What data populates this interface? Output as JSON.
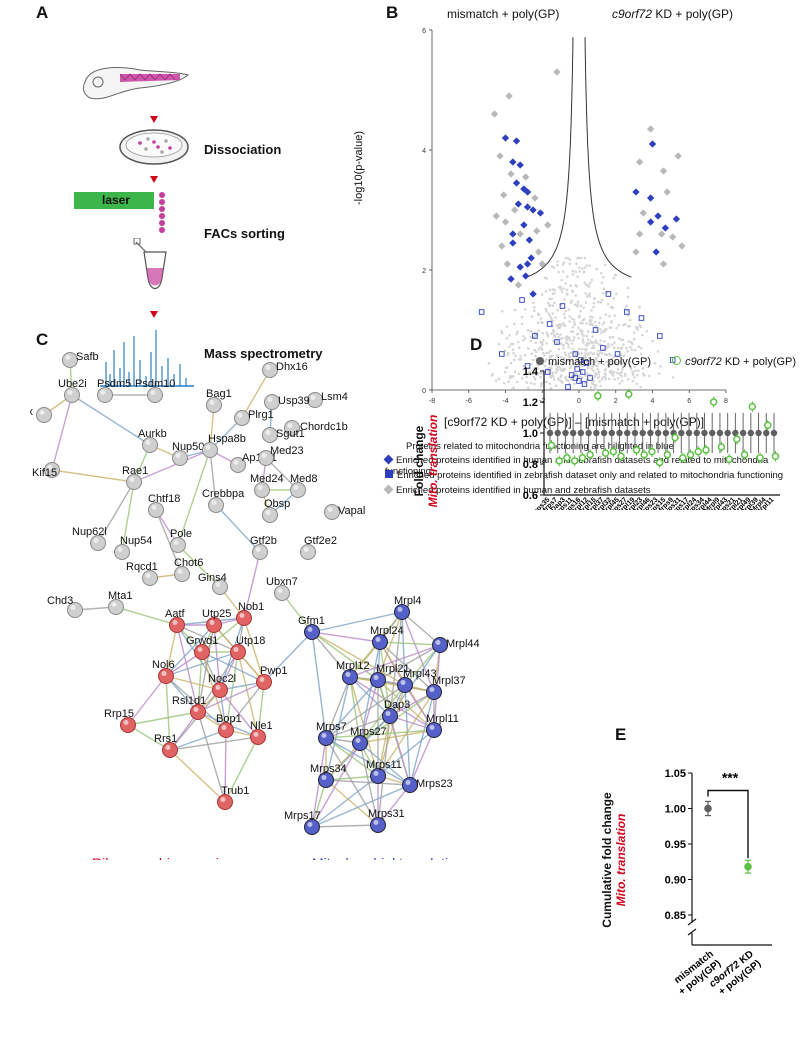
{
  "panel_labels": {
    "a": "A",
    "b": "B",
    "c": "C",
    "d": "D",
    "e": "E"
  },
  "panel_a": {
    "steps": [
      "Dissociation",
      "FACs sorting",
      "Mass spectrometry"
    ],
    "laser_label": "laser",
    "colors": {
      "arrow": "#d0021b",
      "laser": "#3cb54a",
      "fish": "#c43d9a",
      "ms": "#2a7fc4"
    }
  },
  "panel_b": {
    "titles": {
      "left": "mismatch + poly(GP)",
      "right_italic": "c9orf72",
      "right_rest": " KD + poly(GP)"
    },
    "ylabel": "-log10(p-value)",
    "xlabel": "[c9orf72 KD + poly(GP)] – [mismatch + poly(GP)]",
    "legend_title": "Proteins related to mitochondria functioning are hilighted in blue",
    "legend": [
      "Enriched proteins identified in human and zebrafish datasets and related to mitochondria functioning",
      "Enriched proteins identified in zebrafish dataset only and related to mitochondria functioning",
      "Enriched proteins identified in human and zebrafish datasets"
    ],
    "colors": {
      "blue": "#2d3fbf",
      "grey": "#b8b8b8",
      "light": "#d6d6d6"
    }
  },
  "chart_data": [
    {
      "type": "scatter",
      "title": "",
      "xlabel": "[c9orf72 KD + poly(GP)] – [mismatch + poly(GP)]",
      "ylabel": "-log10(p-value)",
      "xlim": [
        -8,
        8
      ],
      "ylim": [
        0,
        6
      ],
      "xticks": [
        -8,
        -6,
        -4,
        -2,
        0,
        2,
        4,
        6,
        8
      ],
      "yticks": [
        0,
        2,
        4,
        6
      ],
      "grid": false,
      "series": [
        {
          "name": "Enriched proteins identified in human and zebrafish datasets and related to mitochondria functioning",
          "marker": "diamond",
          "color": "#2d3fbf",
          "points": [
            [
              -4,
              4.2
            ],
            [
              -3.4,
              4.15
            ],
            [
              -3.6,
              3.8
            ],
            [
              -3.2,
              3.75
            ],
            [
              -3.4,
              3.45
            ],
            [
              -3,
              3.35
            ],
            [
              -2.8,
              3.3
            ],
            [
              -3.3,
              3.1
            ],
            [
              -2.8,
              3.05
            ],
            [
              -2.5,
              3
            ],
            [
              -2.1,
              2.95
            ],
            [
              -3.6,
              2.6
            ],
            [
              -3,
              2.75
            ],
            [
              -2.7,
              2.5
            ],
            [
              -3.6,
              2.45
            ],
            [
              -2.6,
              2.2
            ],
            [
              -2.8,
              2.1
            ],
            [
              -3.2,
              2.05
            ],
            [
              -2.9,
              1.9
            ],
            [
              -3.7,
              1.85
            ],
            [
              -2.5,
              1.6
            ],
            [
              4,
              4.1
            ],
            [
              3.1,
              3.3
            ],
            [
              3.9,
              3.2
            ],
            [
              4.3,
              2.9
            ],
            [
              3.9,
              2.8
            ],
            [
              4.7,
              2.7
            ],
            [
              5.3,
              2.85
            ],
            [
              4.2,
              2.3
            ]
          ]
        },
        {
          "name": "Enriched proteins identified in zebrafish dataset only and related to mitochondria functioning",
          "marker": "square-open",
          "color": "#2d3fbf",
          "points": [
            [
              -0.2,
              0.2
            ],
            [
              0,
              0.15
            ],
            [
              0.2,
              0.3
            ],
            [
              -0.1,
              0.35
            ],
            [
              0.3,
              0.1
            ],
            [
              -0.4,
              0.25
            ],
            [
              0.1,
              0.5
            ],
            [
              -0.2,
              0.6
            ],
            [
              0.4,
              0.45
            ],
            [
              -0.6,
              0.05
            ],
            [
              0.6,
              0.2
            ],
            [
              -1.2,
              0.8
            ],
            [
              1.3,
              0.7
            ],
            [
              -1.6,
              1.1
            ],
            [
              2.1,
              0.6
            ],
            [
              -2.4,
              0.9
            ],
            [
              2.6,
              1.3
            ],
            [
              -3.1,
              1.5
            ],
            [
              3.4,
              1.2
            ],
            [
              -4.2,
              0.6
            ],
            [
              4.4,
              0.9
            ],
            [
              -1.7,
              0.3
            ],
            [
              0.9,
              1
            ],
            [
              -0.9,
              1.4
            ],
            [
              5.1,
              0.5
            ],
            [
              -5.3,
              1.3
            ],
            [
              1.6,
              1.6
            ],
            [
              -2.8,
              0.4
            ]
          ]
        },
        {
          "name": "Enriched proteins identified in human and zebrafish datasets",
          "marker": "diamond",
          "color": "#b8b8b8",
          "points": [
            [
              -4.6,
              4.6
            ],
            [
              -3.8,
              4.9
            ],
            [
              -1.2,
              5.3
            ],
            [
              -4.3,
              3.9
            ],
            [
              -3.7,
              3.6
            ],
            [
              -2.9,
              3.55
            ],
            [
              -4.1,
              3.25
            ],
            [
              -3.5,
              3
            ],
            [
              -2.4,
              3.2
            ],
            [
              -4,
              2.8
            ],
            [
              -3.2,
              2.6
            ],
            [
              -2.3,
              2.65
            ],
            [
              -4.2,
              2.4
            ],
            [
              -3.9,
              2.1
            ],
            [
              -2.2,
              2.3
            ],
            [
              -4.5,
              2.9
            ],
            [
              -1.7,
              2.75
            ],
            [
              -2,
              2.1
            ],
            [
              -3.3,
              1.75
            ],
            [
              3.9,
              4.35
            ],
            [
              3.3,
              3.8
            ],
            [
              4.6,
              3.65
            ],
            [
              5.4,
              3.9
            ],
            [
              4.8,
              3.3
            ],
            [
              3.5,
              2.95
            ],
            [
              5.1,
              2.55
            ],
            [
              3.3,
              2.6
            ],
            [
              5.6,
              2.4
            ],
            [
              4.6,
              2.1
            ],
            [
              3.1,
              2.3
            ],
            [
              4.5,
              2.6
            ]
          ]
        }
      ]
    },
    {
      "type": "scatter",
      "title": "",
      "xlabel": "",
      "ylabel": "Fold change Mito. translation",
      "ylim": [
        0.6,
        1.4
      ],
      "yticks": [
        0.6,
        0.8,
        1.0,
        1.2,
        1.4
      ],
      "categories": [
        "Mrps35",
        "Mrps7",
        "Dap3",
        "Mrps11",
        "Mrps16",
        "Mrpl12",
        "Mrpl15",
        "Mrpl37",
        "Mrpl32",
        "Mrpl45",
        "Mrps27",
        "Mrpl19",
        "Mrpl23",
        "Mrpl46",
        "Mrps23",
        "Mrps15",
        "Mrps9",
        "Mrps31",
        "Mrps17",
        "Mrpl24",
        "Mrps34",
        "Mrpl44",
        "Mrpl9",
        "Mrpl43",
        "Mrps21",
        "Mrpl21",
        "Mrpl49",
        "Mrpl39",
        "Mrpl4",
        "Mrpl11"
      ],
      "series": [
        {
          "name": "mismatch + poly(GP)",
          "color": "#5f5f5f",
          "values": [
            1,
            1,
            1,
            1,
            1,
            1,
            1,
            1,
            1,
            1,
            1,
            1,
            1,
            1,
            1,
            1,
            1,
            1,
            1,
            1,
            1,
            1,
            1,
            1,
            1,
            1,
            1,
            1,
            1,
            1
          ]
        },
        {
          "name": "c9orf72 KD + poly(GP)",
          "color": "#5cc043",
          "values": [
            0.92,
            0.82,
            0.84,
            0.82,
            0.84,
            0.86,
            1.24,
            0.87,
            0.88,
            0.85,
            1.25,
            0.89,
            0.86,
            0.88,
            0.81,
            0.86,
            0.97,
            0.84,
            0.86,
            0.88,
            0.89,
            1.2,
            0.91,
            0.83,
            0.96,
            0.86,
            1.17,
            0.84,
            1.05,
            0.85
          ]
        }
      ]
    },
    {
      "type": "scatter",
      "title": "",
      "xlabel": "",
      "ylabel": "Cumulative fold change Mito. translation",
      "ylim": [
        0.85,
        1.05
      ],
      "yticks": [
        0.85,
        0.9,
        0.95,
        1.0,
        1.05
      ],
      "categories": [
        "mismatch + poly(GP)",
        "c9orf72 KD + poly(GP)"
      ],
      "values": [
        1.0,
        0.918
      ],
      "errors": [
        0.01,
        0.009
      ],
      "annotations": [
        "***"
      ]
    }
  ],
  "panel_d": {
    "ylabel_line1": "Fold change",
    "ylabel_line2": "Mito. translation",
    "legend_mismatch": "mismatch + poly(GP)",
    "legend_kd_italic": "c9orf72",
    "legend_kd_rest": " KD + poly(GP)",
    "tick_labels": [
      "0.6",
      "0.8",
      "1.0",
      "1.2",
      "1.4"
    ]
  },
  "panel_e": {
    "ylabel_line1": "Cumulative fold change",
    "ylabel_line2": "Mito. translation",
    "tick_labels": [
      "0.85",
      "0.90",
      "0.95",
      "1.00",
      "1.05"
    ],
    "sig": "***",
    "x1_line1": "mismatch",
    "x1_line2": "+ poly(GP)",
    "x2_line1_italic": "c9orf72",
    "x2_line1_rest": " KD",
    "x2_line2": "+ poly(GP)"
  },
  "panel_c": {
    "cluster_red_label": "Ribosome biogenesis",
    "cluster_blue_label": "Mitochondrial translation",
    "colors": {
      "grey": "#cfcfcf",
      "red": "#e06464",
      "blue": "#5560c8"
    },
    "grey_nodes": [
      "Safb",
      "Daxx",
      "Ube2i",
      "Psdm5",
      "Psdm10",
      "Dhx16",
      "Lsm4",
      "Usp39",
      "Bag1",
      "Plrg1",
      "Chordc1b",
      "Sgut1",
      "Aurkb",
      "Nup50",
      "Hspa8b",
      "Ap1m1",
      "Med23",
      "Kif15",
      "Rae1",
      "Med24",
      "Med8",
      "Vapal",
      "Obsp",
      "Chtf18",
      "Crebbpa",
      "Nup62l",
      "Nup54",
      "Pole",
      "Gtf2b",
      "Gtf2e2",
      "Rqcd1",
      "Chot6",
      "Gins4",
      "Chd3",
      "Mta1",
      "Ubxn7"
    ],
    "red_nodes": [
      "Nob1",
      "Aatf",
      "Utp25",
      "Utp18",
      "Grwd1",
      "Pwp1",
      "Nol6",
      "Noc2l",
      "Rsl1d1",
      "Rrp15",
      "Bop1",
      "Nle1",
      "Rrs1",
      "Trub1"
    ],
    "blue_nodes": [
      "Gfm1",
      "Mrpl4",
      "Mrpl24",
      "Mrpl44",
      "Mrpl12",
      "Mrpl21",
      "Mrpl43",
      "Mrpl37",
      "Dap3",
      "Mrpl11",
      "Mrps7",
      "Mrps27",
      "Mrps11",
      "Mrps34",
      "Mrps23",
      "Mrps17",
      "Mrps31"
    ]
  }
}
